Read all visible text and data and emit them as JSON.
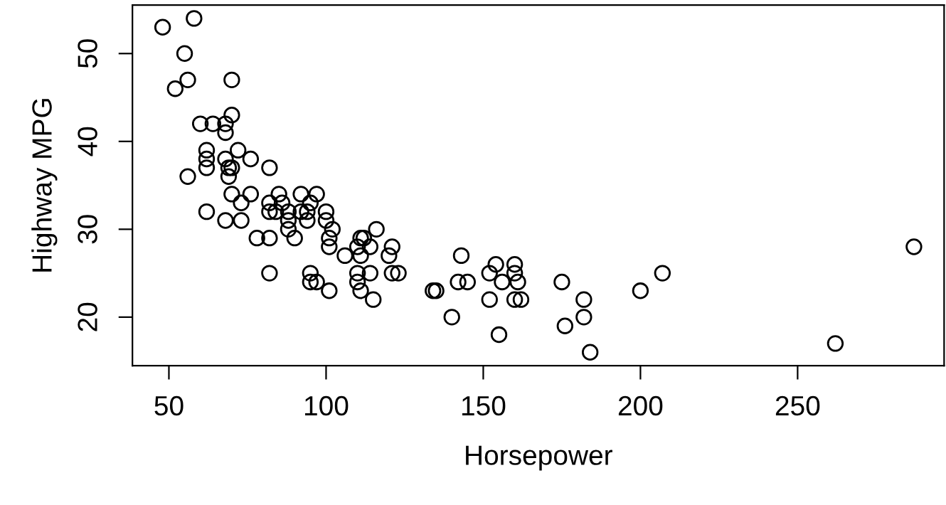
{
  "chart_data": {
    "type": "scatter",
    "xlabel": "Horsepower",
    "ylabel": "Highway MPG",
    "x": [
      48,
      58,
      55,
      52,
      56,
      70,
      70,
      60,
      64,
      68,
      68,
      62,
      62,
      62,
      68,
      72,
      76,
      69,
      70,
      69,
      56,
      82,
      70,
      76,
      85,
      92,
      97,
      73,
      82,
      86,
      82,
      84,
      88,
      92,
      94,
      95,
      88,
      94,
      88,
      90,
      62,
      68,
      73,
      78,
      82,
      82,
      95,
      95,
      97,
      101,
      100,
      100,
      102,
      101,
      101,
      106,
      110,
      111,
      112,
      111,
      114,
      116,
      110,
      110,
      111,
      114,
      115,
      121,
      120,
      121,
      123,
      134,
      135,
      140,
      142,
      145,
      143,
      152,
      154,
      156,
      152,
      155,
      160,
      160,
      161,
      160,
      162,
      175,
      176,
      182,
      182,
      184,
      200,
      207,
      262,
      287
    ],
    "values": [
      53,
      54,
      50,
      46,
      47,
      47,
      43,
      42,
      42,
      42,
      41,
      39,
      38,
      37,
      38,
      39,
      38,
      37,
      37,
      36,
      36,
      37,
      34,
      34,
      34,
      34,
      34,
      33,
      33,
      33,
      32,
      32,
      32,
      32,
      32,
      33,
      31,
      31,
      30,
      29,
      32,
      31,
      31,
      29,
      29,
      25,
      25,
      24,
      24,
      23,
      32,
      31,
      30,
      29,
      28,
      27,
      28,
      29,
      29,
      27,
      28,
      30,
      25,
      24,
      23,
      25,
      22,
      28,
      27,
      25,
      25,
      23,
      23,
      20,
      24,
      24,
      27,
      25,
      26,
      24,
      22,
      18,
      26,
      25,
      24,
      22,
      22,
      24,
      19,
      22,
      20,
      16,
      23,
      25,
      17,
      28
    ],
    "color": "#000000",
    "marker": "circle",
    "xlim": [
      38.4,
      296.6
    ],
    "ylim": [
      14.48,
      55.52
    ],
    "xticks": [
      50,
      100,
      150,
      200,
      250
    ],
    "yticks": [
      20,
      30,
      40,
      50
    ],
    "grid": false,
    "legend": false
  }
}
